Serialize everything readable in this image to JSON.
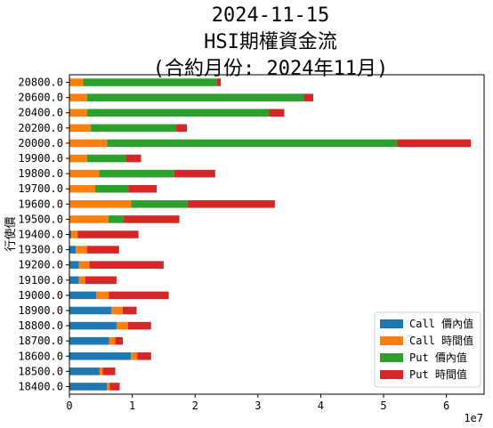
{
  "chart_data": {
    "type": "bar",
    "orientation": "horizontal",
    "stacked": true,
    "title_lines": [
      "2024-11-15",
      "HSI期權資金流",
      "(合約月份: 2024年11月)"
    ],
    "xlabel": "",
    "ylabel": "行使價",
    "x_offset_label": "1e7",
    "xlim": [
      0,
      6.6
    ],
    "x_ticks": [
      "0",
      "1",
      "2",
      "3",
      "4",
      "5",
      "6"
    ],
    "legend_position": "lower-right",
    "grid": false,
    "categories": [
      "18400.0",
      "18500.0",
      "18600.0",
      "18700.0",
      "18800.0",
      "18900.0",
      "19000.0",
      "19100.0",
      "19200.0",
      "19300.0",
      "19400.0",
      "19500.0",
      "19600.0",
      "19700.0",
      "19800.0",
      "19900.0",
      "20000.0",
      "20200.0",
      "20400.0",
      "20600.0",
      "20800.0"
    ],
    "series": [
      {
        "name": "Call 價內值",
        "color": "#1f77b4",
        "values": [
          0.6,
          0.48,
          0.98,
          0.63,
          0.75,
          0.67,
          0.43,
          0.15,
          0.15,
          0.1,
          0.03,
          0,
          0,
          0,
          0,
          0,
          0,
          0,
          0,
          0,
          0
        ]
      },
      {
        "name": "Call 時間值",
        "color": "#ff7f0e",
        "values": [
          0.04,
          0.05,
          0.1,
          0.1,
          0.18,
          0.18,
          0.2,
          0.1,
          0.17,
          0.18,
          0.1,
          0.62,
          0.98,
          0.41,
          0.47,
          0.28,
          0.6,
          0.34,
          0.28,
          0.28,
          0.22
        ]
      },
      {
        "name": "Put 價內值",
        "color": "#2ca02c",
        "values": [
          0,
          0,
          0,
          0,
          0,
          0,
          0,
          0,
          0,
          0,
          0,
          0.24,
          0.9,
          0.53,
          1.2,
          0.62,
          4.62,
          1.35,
          2.9,
          3.45,
          2.13
        ]
      },
      {
        "name": "Put 時間值",
        "color": "#d62728",
        "values": [
          0.16,
          0.2,
          0.22,
          0.12,
          0.37,
          0.22,
          0.95,
          0.5,
          1.18,
          0.51,
          0.97,
          0.89,
          1.39,
          0.45,
          0.65,
          0.24,
          1.17,
          0.18,
          0.24,
          0.15,
          0.06
        ]
      }
    ]
  }
}
